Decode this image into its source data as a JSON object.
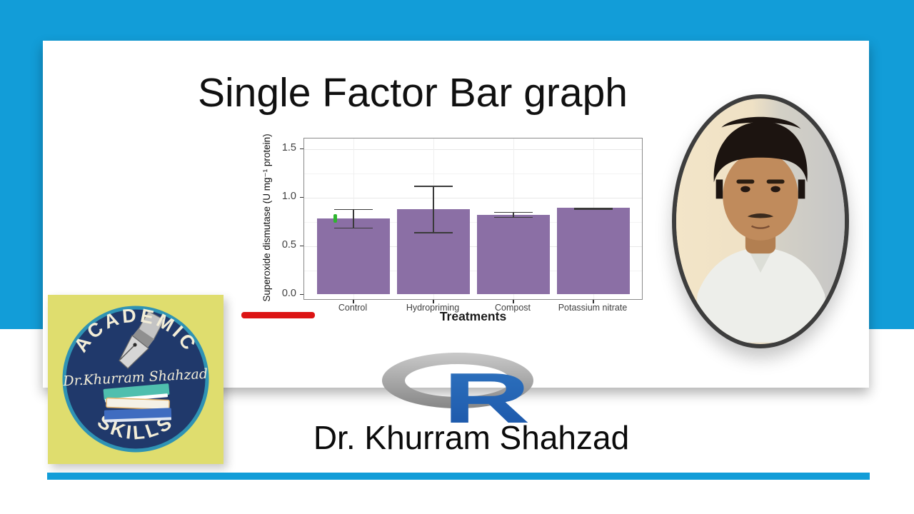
{
  "page": {
    "frame_color": "#129dd8",
    "card_color": "#ffffff"
  },
  "title": "Single Factor Bar graph",
  "author": {
    "name": "Dr. Khurram Shahzad"
  },
  "r_logo": {
    "letter": "R",
    "ring_color": "#9a9a9a",
    "letter_color": "#2a6ab5"
  },
  "brand_logo": {
    "arc_top": "ACADEMIC",
    "arc_bottom": "SKILLS",
    "name": "Dr.Khurram Shahzad",
    "bg_color": "#dfdd6e",
    "circle_color": "#20396b",
    "ring_color": "#2f93b4",
    "text_color": "#f4eed8"
  },
  "annotations": {
    "underline_color": "#dc1414",
    "marker_color": "#2fb52f"
  },
  "chart_data": {
    "type": "bar",
    "title": "",
    "categories": [
      "Control",
      "Hydropriming",
      "Compost",
      "Potassium nitrate"
    ],
    "values": [
      0.78,
      0.88,
      0.82,
      0.89
    ],
    "error_low": [
      0.69,
      0.64,
      0.8,
      0.88
    ],
    "error_high": [
      0.88,
      1.12,
      0.85,
      0.89
    ],
    "xlabel": "Treatments",
    "ylabel": "Superoxide dismutase (U mg⁻¹ protein)",
    "yticks": [
      0.0,
      0.5,
      1.0,
      1.5
    ],
    "ylim": [
      -0.06,
      1.61
    ],
    "bar_color": "#8b6fa5",
    "errorbar_color": "#3a3a3a",
    "grid": true,
    "legend": false
  }
}
